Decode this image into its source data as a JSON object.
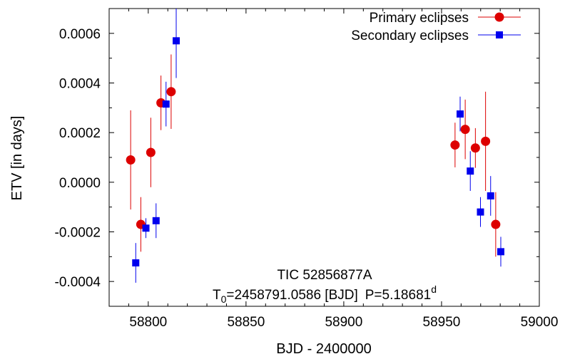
{
  "chart_data": {
    "type": "scatter",
    "title": "",
    "xlabel": "BJD - 2400000",
    "ylabel": "ETV [in days]",
    "xlim": [
      58780,
      59000
    ],
    "ylim": [
      -0.0005,
      0.0007
    ],
    "xticks": [
      58800,
      58850,
      58900,
      58950,
      59000
    ],
    "xtick_labels": [
      "58800",
      "58850",
      "58900",
      "58950",
      "59000"
    ],
    "yticks": [
      -0.0004,
      -0.0002,
      0.0,
      0.0002,
      0.0004,
      0.0006
    ],
    "ytick_labels": [
      "-0.0004",
      "-0.0002",
      "0.0000",
      "0.0002",
      "0.0004",
      "0.0006"
    ],
    "grid": false,
    "legend_position": "top-right",
    "series": [
      {
        "name": "Primary eclipses",
        "marker": "circle",
        "color": "#dd0000",
        "points": [
          {
            "x": 58791.0,
            "y": 9e-05,
            "err": 0.0002
          },
          {
            "x": 58796.2,
            "y": -0.00017,
            "err": 0.00011
          },
          {
            "x": 58801.3,
            "y": 0.00012,
            "err": 0.00014
          },
          {
            "x": 58806.5,
            "y": 0.00032,
            "err": 0.00011
          },
          {
            "x": 58811.7,
            "y": 0.000365,
            "err": 0.00015
          },
          {
            "x": 58956.9,
            "y": 0.00015,
            "err": 9e-05
          },
          {
            "x": 58962.1,
            "y": 0.000213,
            "err": 0.00012
          },
          {
            "x": 58967.3,
            "y": 0.000138,
            "err": 8e-05
          },
          {
            "x": 58972.5,
            "y": 0.000165,
            "err": 0.0002
          },
          {
            "x": 58977.7,
            "y": -0.00017,
            "err": 0.00013
          }
        ]
      },
      {
        "name": "Secondary eclipses",
        "marker": "square",
        "color": "#0000ee",
        "points": [
          {
            "x": 58793.6,
            "y": -0.000325,
            "err": 8e-05
          },
          {
            "x": 58798.8,
            "y": -0.000185,
            "err": 4e-05
          },
          {
            "x": 58804.0,
            "y": -0.000155,
            "err": 7e-05
          },
          {
            "x": 58809.1,
            "y": 0.000315,
            "err": 9e-05
          },
          {
            "x": 58814.3,
            "y": 0.00057,
            "err": 0.00015
          },
          {
            "x": 58959.5,
            "y": 0.000275,
            "err": 7e-05
          },
          {
            "x": 58964.7,
            "y": 4.5e-05,
            "err": 8e-05
          },
          {
            "x": 58969.9,
            "y": -0.00012,
            "err": 6e-05
          },
          {
            "x": 58975.1,
            "y": -5.5e-05,
            "err": 8e-05
          },
          {
            "x": 58980.3,
            "y": -0.00028,
            "err": 6e-05
          }
        ]
      }
    ],
    "annotations": {
      "object_name": "TIC 52856877A",
      "ephemeris_t0_symbol": "T",
      "ephemeris_t0_subscript": "0",
      "ephemeris_t0_value": "=2458791.0586 [BJD]",
      "ephemeris_period": "P=5.18681",
      "ephemeris_period_superscript": "d"
    }
  }
}
